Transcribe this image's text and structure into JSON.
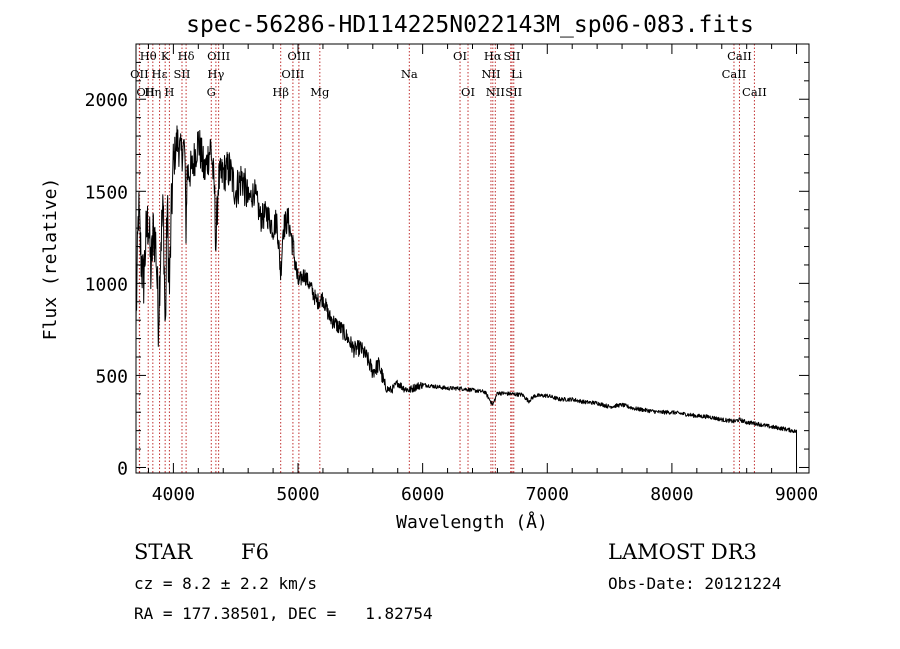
{
  "chart_data": {
    "type": "line",
    "title": "spec-56286-HD114225N022143M_sp06-083.fits",
    "xlabel": "Wavelength (Å)",
    "ylabel": "Flux (relative)",
    "xlim": [
      3700,
      9100
    ],
    "ylim": [
      -30,
      2300
    ],
    "xticks": [
      4000,
      5000,
      6000,
      7000,
      8000,
      9000
    ],
    "yticks": [
      0,
      500,
      1000,
      1500,
      2000
    ],
    "series": [
      {
        "name": "spectrum",
        "x": [
          3700,
          3720,
          3740,
          3760,
          3780,
          3800,
          3820,
          3840,
          3860,
          3880,
          3900,
          3920,
          3935,
          3950,
          3968,
          3985,
          4000,
          4030,
          4060,
          4090,
          4101,
          4110,
          4150,
          4200,
          4250,
          4300,
          4330,
          4341,
          4360,
          4400,
          4450,
          4500,
          4550,
          4600,
          4650,
          4700,
          4750,
          4800,
          4830,
          4861,
          4880,
          4920,
          4960,
          5000,
          5050,
          5100,
          5150,
          5200,
          5250,
          5300,
          5350,
          5400,
          5450,
          5500,
          5550,
          5600,
          5650,
          5700,
          5750,
          5800,
          5850,
          5893,
          5950,
          6000,
          6100,
          6200,
          6300,
          6400,
          6500,
          6563,
          6600,
          6700,
          6800,
          6850,
          6900,
          7000,
          7100,
          7200,
          7300,
          7400,
          7500,
          7600,
          7700,
          7800,
          7900,
          8000,
          8100,
          8200,
          8300,
          8400,
          8498,
          8542,
          8600,
          8662,
          8700,
          8800,
          8900,
          9000
        ],
        "values": [
          760,
          1400,
          1150,
          1000,
          1250,
          1350,
          1050,
          1300,
          1200,
          800,
          1250,
          1400,
          700,
          1450,
          950,
          1400,
          1650,
          1780,
          1700,
          1750,
          1300,
          1600,
          1620,
          1780,
          1600,
          1750,
          1500,
          1200,
          1550,
          1600,
          1620,
          1500,
          1580,
          1450,
          1500,
          1350,
          1380,
          1300,
          1350,
          1050,
          1300,
          1350,
          1200,
          1000,
          1050,
          980,
          900,
          920,
          820,
          780,
          750,
          700,
          640,
          650,
          600,
          520,
          560,
          430,
          420,
          460,
          430,
          420,
          440,
          450,
          440,
          430,
          430,
          420,
          410,
          340,
          405,
          400,
          395,
          360,
          390,
          390,
          370,
          370,
          355,
          350,
          330,
          340,
          320,
          310,
          300,
          300,
          290,
          280,
          275,
          260,
          250,
          260,
          245,
          240,
          235,
          220,
          210,
          195
        ]
      }
    ],
    "lines": [
      {
        "label": "Hθ",
        "x": 3798,
        "row": 0,
        "dx": 0
      },
      {
        "label": "OII",
        "x": 3727,
        "row": 1,
        "dx": 0
      },
      {
        "label": "OII",
        "x": 3729,
        "row": 2,
        "dx": 6
      },
      {
        "label": "Hη",
        "x": 3835,
        "row": 2,
        "dx": 0
      },
      {
        "label": "Hε",
        "x": 3889,
        "row": 1,
        "dx": 0
      },
      {
        "label": "K",
        "x": 3934,
        "row": 0,
        "dx": 0
      },
      {
        "label": "H",
        "x": 3968,
        "row": 2,
        "dx": 0
      },
      {
        "label": "SII",
        "x": 4069,
        "row": 1,
        "dx": 0
      },
      {
        "label": "Hδ",
        "x": 4102,
        "row": 0,
        "dx": 0
      },
      {
        "label": "OIII",
        "x": 4363,
        "row": 0,
        "dx": 0
      },
      {
        "label": "Hγ",
        "x": 4341,
        "row": 1,
        "dx": 0
      },
      {
        "label": "G",
        "x": 4304,
        "row": 2,
        "dx": 0
      },
      {
        "label": "Hβ",
        "x": 4861,
        "row": 2,
        "dx": 0
      },
      {
        "label": "OIII",
        "x": 4959,
        "row": 1,
        "dx": 0
      },
      {
        "label": "OIII",
        "x": 5007,
        "row": 0,
        "dx": 0
      },
      {
        "label": "Mg",
        "x": 5175,
        "row": 2,
        "dx": 0
      },
      {
        "label": "Na",
        "x": 5893,
        "row": 1,
        "dx": 0
      },
      {
        "label": "OI",
        "x": 6300,
        "row": 0,
        "dx": 0
      },
      {
        "label": "OI",
        "x": 6364,
        "row": 2,
        "dx": 0
      },
      {
        "label": "Hα",
        "x": 6563,
        "row": 0,
        "dx": 0
      },
      {
        "label": "NII",
        "x": 6548,
        "row": 1,
        "dx": 0
      },
      {
        "label": "NII",
        "x": 6583,
        "row": 2,
        "dx": 0
      },
      {
        "label": "SII",
        "x": 6717,
        "row": 0,
        "dx": 0
      },
      {
        "label": "SII",
        "x": 6731,
        "row": 2,
        "dx": 0
      },
      {
        "label": "Li",
        "x": 6707,
        "row": 1,
        "dx": 6
      },
      {
        "label": "CaII",
        "x": 8498,
        "row": 1,
        "dx": 0
      },
      {
        "label": "CaII",
        "x": 8542,
        "row": 0,
        "dx": 0
      },
      {
        "label": "CaII",
        "x": 8662,
        "row": 2,
        "dx": 0
      }
    ]
  },
  "info": {
    "class_label": "STAR",
    "subclass": "F6",
    "survey": "LAMOST DR3",
    "cz": "cz = 8.2 ± 2.2 km/s",
    "obs_date": "Obs-Date: 20121224",
    "radec": "RA = 177.38501, DEC =   1.82754"
  }
}
